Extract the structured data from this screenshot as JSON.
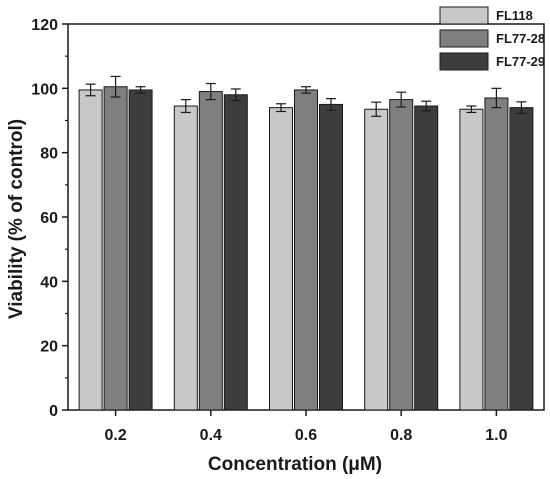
{
  "chart_data": {
    "type": "bar",
    "categories": [
      "0.2",
      "0.4",
      "0.6",
      "0.8",
      "1.0"
    ],
    "series": [
      {
        "name": "FL118",
        "color": "#c8c8c8",
        "values": [
          99.5,
          94.5,
          94.0,
          93.5,
          93.5
        ],
        "errors": [
          1.8,
          2.0,
          1.2,
          2.2,
          1.0
        ]
      },
      {
        "name": "FL77-28",
        "color": "#7f7f7f",
        "values": [
          100.5,
          99.0,
          99.5,
          96.5,
          97.0
        ],
        "errors": [
          3.2,
          2.5,
          1.0,
          2.3,
          3.0
        ]
      },
      {
        "name": "FL77-29",
        "color": "#3d3d3d",
        "values": [
          99.5,
          98.0,
          95.0,
          94.5,
          94.0
        ],
        "errors": [
          1.0,
          1.8,
          1.8,
          1.5,
          1.8
        ]
      }
    ],
    "xlabel": "Concentration (μM)",
    "ylabel": "Viability (% of control)",
    "ylim": [
      0,
      120
    ],
    "yticks": [
      "0",
      "20",
      "40",
      "60",
      "80",
      "100",
      "120"
    ],
    "grid": false,
    "legend_position": "top-right"
  }
}
